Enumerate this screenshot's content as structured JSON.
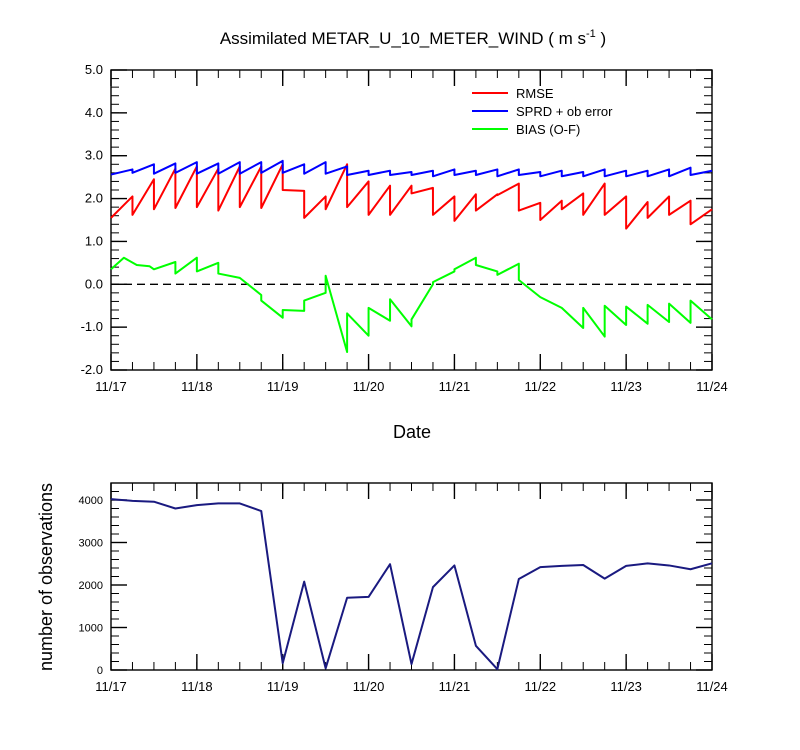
{
  "title": {
    "text_main": "Assimilated METAR_U_10_METER_WIND ( m s",
    "text_sup": "-1",
    "text_close": " )"
  },
  "chart_data": [
    {
      "type": "line",
      "xlabel": "Date",
      "ylabel": "",
      "xlim": [
        0,
        7
      ],
      "ylim": [
        -2.0,
        5.0
      ],
      "x_ticks": [
        {
          "x": 0,
          "label": "11/17"
        },
        {
          "x": 1,
          "label": "11/18"
        },
        {
          "x": 2,
          "label": "11/19"
        },
        {
          "x": 3,
          "label": "11/20"
        },
        {
          "x": 4,
          "label": "11/21"
        },
        {
          "x": 5,
          "label": "11/22"
        },
        {
          "x": 6,
          "label": "11/23"
        },
        {
          "x": 7,
          "label": "11/24"
        }
      ],
      "y_ticks": [
        {
          "v": -2.0,
          "label": "-2.0"
        },
        {
          "v": -1.0,
          "label": "-1.0"
        },
        {
          "v": 0.0,
          "label": "0.0"
        },
        {
          "v": 1.0,
          "label": "1.0"
        },
        {
          "v": 2.0,
          "label": "2.0"
        },
        {
          "v": 3.0,
          "label": "3.0"
        },
        {
          "v": 4.0,
          "label": "4.0"
        },
        {
          "v": 5.0,
          "label": "5.0"
        }
      ],
      "reference_line": {
        "y": 0.0,
        "style": "dashed"
      },
      "legend_position": "top-right",
      "series": [
        {
          "name": "RMSE",
          "color": "#ff0000",
          "points": [
            [
              0.0,
              1.55
            ],
            [
              0.25,
              2.05
            ],
            [
              0.25,
              1.62
            ],
            [
              0.5,
              2.45
            ],
            [
              0.5,
              1.75
            ],
            [
              0.75,
              2.7
            ],
            [
              0.75,
              1.78
            ],
            [
              1.0,
              2.75
            ],
            [
              1.0,
              1.8
            ],
            [
              1.25,
              2.7
            ],
            [
              1.25,
              1.72
            ],
            [
              1.5,
              2.75
            ],
            [
              1.5,
              1.8
            ],
            [
              1.75,
              2.75
            ],
            [
              1.75,
              1.78
            ],
            [
              2.0,
              2.8
            ],
            [
              2.0,
              2.2
            ],
            [
              2.25,
              2.18
            ],
            [
              2.25,
              1.55
            ],
            [
              2.5,
              2.05
            ],
            [
              2.5,
              1.75
            ],
            [
              2.75,
              2.8
            ],
            [
              2.75,
              1.8
            ],
            [
              3.0,
              2.4
            ],
            [
              3.0,
              1.62
            ],
            [
              3.25,
              2.3
            ],
            [
              3.25,
              1.62
            ],
            [
              3.5,
              2.3
            ],
            [
              3.5,
              2.12
            ],
            [
              3.75,
              2.25
            ],
            [
              3.75,
              1.62
            ],
            [
              4.0,
              2.05
            ],
            [
              4.0,
              1.48
            ],
            [
              4.25,
              2.1
            ],
            [
              4.25,
              1.72
            ],
            [
              4.5,
              2.1
            ],
            [
              4.5,
              2.08
            ],
            [
              4.75,
              2.35
            ],
            [
              4.75,
              1.72
            ],
            [
              5.0,
              1.9
            ],
            [
              5.0,
              1.5
            ],
            [
              5.25,
              1.95
            ],
            [
              5.25,
              1.75
            ],
            [
              5.5,
              2.12
            ],
            [
              5.5,
              1.62
            ],
            [
              5.75,
              2.35
            ],
            [
              5.75,
              1.62
            ],
            [
              6.0,
              2.05
            ],
            [
              6.0,
              1.3
            ],
            [
              6.25,
              1.92
            ],
            [
              6.25,
              1.55
            ],
            [
              6.5,
              2.05
            ],
            [
              6.5,
              1.62
            ],
            [
              6.75,
              1.95
            ],
            [
              6.75,
              1.4
            ],
            [
              7.0,
              1.75
            ]
          ]
        },
        {
          "name": "SPRD + ob error",
          "color": "#0000ff",
          "points": [
            [
              0.0,
              2.56
            ],
            [
              0.25,
              2.68
            ],
            [
              0.25,
              2.6
            ],
            [
              0.5,
              2.8
            ],
            [
              0.5,
              2.58
            ],
            [
              0.75,
              2.82
            ],
            [
              0.75,
              2.6
            ],
            [
              1.0,
              2.85
            ],
            [
              1.0,
              2.58
            ],
            [
              1.25,
              2.82
            ],
            [
              1.25,
              2.58
            ],
            [
              1.5,
              2.85
            ],
            [
              1.5,
              2.58
            ],
            [
              1.75,
              2.85
            ],
            [
              1.75,
              2.6
            ],
            [
              2.0,
              2.88
            ],
            [
              2.0,
              2.6
            ],
            [
              2.25,
              2.8
            ],
            [
              2.25,
              2.58
            ],
            [
              2.5,
              2.85
            ],
            [
              2.5,
              2.58
            ],
            [
              2.75,
              2.75
            ],
            [
              2.75,
              2.55
            ],
            [
              3.0,
              2.65
            ],
            [
              3.0,
              2.55
            ],
            [
              3.25,
              2.65
            ],
            [
              3.25,
              2.55
            ],
            [
              3.5,
              2.62
            ],
            [
              3.5,
              2.55
            ],
            [
              3.75,
              2.65
            ],
            [
              3.75,
              2.52
            ],
            [
              4.0,
              2.68
            ],
            [
              4.0,
              2.55
            ],
            [
              4.25,
              2.65
            ],
            [
              4.25,
              2.55
            ],
            [
              4.5,
              2.68
            ],
            [
              4.5,
              2.52
            ],
            [
              4.75,
              2.68
            ],
            [
              4.75,
              2.55
            ],
            [
              5.0,
              2.62
            ],
            [
              5.0,
              2.52
            ],
            [
              5.25,
              2.65
            ],
            [
              5.25,
              2.52
            ],
            [
              5.5,
              2.62
            ],
            [
              5.5,
              2.52
            ],
            [
              5.75,
              2.68
            ],
            [
              5.75,
              2.52
            ],
            [
              6.0,
              2.65
            ],
            [
              6.0,
              2.52
            ],
            [
              6.25,
              2.65
            ],
            [
              6.25,
              2.52
            ],
            [
              6.5,
              2.68
            ],
            [
              6.5,
              2.52
            ],
            [
              6.75,
              2.72
            ],
            [
              6.75,
              2.55
            ],
            [
              7.0,
              2.65
            ]
          ]
        },
        {
          "name": "BIAS (O-F)",
          "color": "#00ff00",
          "points": [
            [
              0.0,
              0.35
            ],
            [
              0.15,
              0.62
            ],
            [
              0.3,
              0.45
            ],
            [
              0.45,
              0.42
            ],
            [
              0.5,
              0.35
            ],
            [
              0.75,
              0.52
            ],
            [
              0.75,
              0.25
            ],
            [
              1.0,
              0.62
            ],
            [
              1.0,
              0.3
            ],
            [
              1.25,
              0.5
            ],
            [
              1.25,
              0.25
            ],
            [
              1.5,
              0.15
            ],
            [
              1.75,
              -0.25
            ],
            [
              1.75,
              -0.38
            ],
            [
              2.0,
              -0.78
            ],
            [
              2.0,
              -0.6
            ],
            [
              2.25,
              -0.62
            ],
            [
              2.25,
              -0.38
            ],
            [
              2.5,
              -0.2
            ],
            [
              2.5,
              0.2
            ],
            [
              2.75,
              -1.58
            ],
            [
              2.75,
              -0.68
            ],
            [
              3.0,
              -1.2
            ],
            [
              3.0,
              -0.55
            ],
            [
              3.25,
              -0.85
            ],
            [
              3.25,
              -0.35
            ],
            [
              3.5,
              -0.98
            ],
            [
              3.5,
              -0.82
            ],
            [
              3.75,
              0.0
            ],
            [
              3.75,
              0.05
            ],
            [
              4.0,
              0.3
            ],
            [
              4.0,
              0.35
            ],
            [
              4.25,
              0.62
            ],
            [
              4.25,
              0.45
            ],
            [
              4.5,
              0.3
            ],
            [
              4.5,
              0.22
            ],
            [
              4.75,
              0.48
            ],
            [
              4.75,
              0.1
            ],
            [
              5.0,
              -0.3
            ],
            [
              5.25,
              -0.55
            ],
            [
              5.25,
              -0.55
            ],
            [
              5.5,
              -1.02
            ],
            [
              5.5,
              -0.55
            ],
            [
              5.75,
              -1.22
            ],
            [
              5.75,
              -0.5
            ],
            [
              6.0,
              -0.95
            ],
            [
              6.0,
              -0.52
            ],
            [
              6.25,
              -0.92
            ],
            [
              6.25,
              -0.48
            ],
            [
              6.5,
              -0.88
            ],
            [
              6.5,
              -0.45
            ],
            [
              6.75,
              -0.9
            ],
            [
              6.75,
              -0.38
            ],
            [
              7.0,
              -0.82
            ]
          ]
        }
      ]
    },
    {
      "type": "line",
      "xlabel": "",
      "ylabel": "number of observations",
      "xlim": [
        0,
        7
      ],
      "ylim": [
        0,
        4400
      ],
      "x_ticks": [
        {
          "x": 0,
          "label": "11/17"
        },
        {
          "x": 1,
          "label": "11/18"
        },
        {
          "x": 2,
          "label": "11/19"
        },
        {
          "x": 3,
          "label": "11/20"
        },
        {
          "x": 4,
          "label": "11/21"
        },
        {
          "x": 5,
          "label": "11/22"
        },
        {
          "x": 6,
          "label": "11/23"
        },
        {
          "x": 7,
          "label": "11/24"
        }
      ],
      "y_ticks": [
        {
          "v": 0,
          "label": "0"
        },
        {
          "v": 1000,
          "label": "1000"
        },
        {
          "v": 2000,
          "label": "2000"
        },
        {
          "v": 3000,
          "label": "3000"
        },
        {
          "v": 4000,
          "label": "4000"
        }
      ],
      "series": [
        {
          "name": "",
          "color": "#1a1a80",
          "points": [
            [
              0.0,
              4020
            ],
            [
              0.25,
              3980
            ],
            [
              0.5,
              3960
            ],
            [
              0.75,
              3800
            ],
            [
              1.0,
              3880
            ],
            [
              1.25,
              3920
            ],
            [
              1.5,
              3920
            ],
            [
              1.75,
              3740
            ],
            [
              2.0,
              160
            ],
            [
              2.25,
              2080
            ],
            [
              2.5,
              40
            ],
            [
              2.75,
              1700
            ],
            [
              3.0,
              1720
            ],
            [
              3.25,
              2490
            ],
            [
              3.5,
              140
            ],
            [
              3.75,
              1950
            ],
            [
              4.0,
              2460
            ],
            [
              4.25,
              570
            ],
            [
              4.5,
              20
            ],
            [
              4.75,
              2140
            ],
            [
              5.0,
              2420
            ],
            [
              5.25,
              2450
            ],
            [
              5.5,
              2470
            ],
            [
              5.75,
              2150
            ],
            [
              6.0,
              2450
            ],
            [
              6.25,
              2510
            ],
            [
              6.5,
              2460
            ],
            [
              6.75,
              2370
            ],
            [
              7.0,
              2510
            ]
          ]
        }
      ]
    }
  ]
}
